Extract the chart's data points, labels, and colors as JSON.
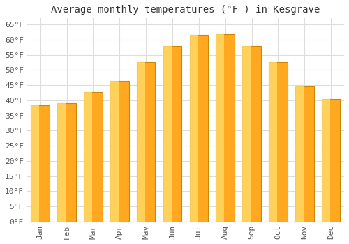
{
  "title": "Average monthly temperatures (°F ) in Kesgrave",
  "months": [
    "Jan",
    "Feb",
    "Mar",
    "Apr",
    "May",
    "Jun",
    "Jul",
    "Aug",
    "Sep",
    "Oct",
    "Nov",
    "Dec"
  ],
  "values": [
    38.3,
    39.0,
    42.8,
    46.4,
    52.7,
    57.9,
    61.5,
    61.7,
    57.9,
    52.5,
    44.6,
    40.5
  ],
  "bar_color_left": "#FFD966",
  "bar_color_right": "#FFA500",
  "bar_edge_color": "#CC8800",
  "ylim": [
    0,
    67
  ],
  "yticks": [
    0,
    5,
    10,
    15,
    20,
    25,
    30,
    35,
    40,
    45,
    50,
    55,
    60,
    65
  ],
  "ytick_labels": [
    "0°F",
    "5°F",
    "10°F",
    "15°F",
    "20°F",
    "25°F",
    "30°F",
    "35°F",
    "40°F",
    "45°F",
    "50°F",
    "55°F",
    "60°F",
    "65°F"
  ],
  "bg_color": "#ffffff",
  "grid_color": "#dddddd",
  "title_fontsize": 10,
  "tick_fontsize": 8,
  "bar_width": 0.7
}
